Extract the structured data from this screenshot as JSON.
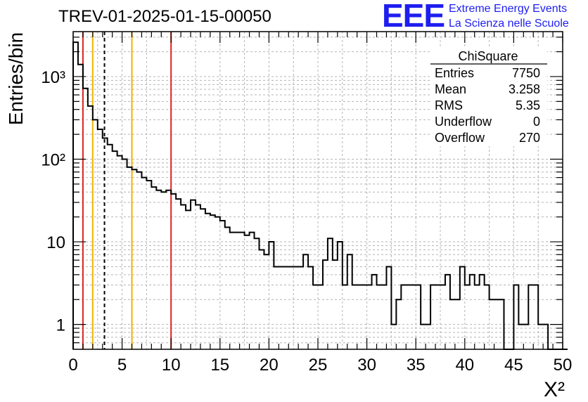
{
  "header": {
    "title": "TREV-01-2025-01-15-00050",
    "brand_logo": "EEE",
    "brand_line1": "Extreme Energy Events",
    "brand_line2": "La Scienza nelle Scuole"
  },
  "stats": {
    "name": "ChiSquare",
    "rows": [
      {
        "label": "Entries",
        "value": "7750"
      },
      {
        "label": "Mean",
        "value": "3.258"
      },
      {
        "label": "RMS",
        "value": "5.35"
      },
      {
        "label": "Underflow",
        "value": "0"
      },
      {
        "label": "Overflow",
        "value": "270"
      }
    ]
  },
  "chart_data": {
    "type": "histogram",
    "xlabel": "X²",
    "ylabel": "Entries/bin",
    "xlim": [
      0,
      50
    ],
    "ylim": [
      0.5,
      3500
    ],
    "yscale": "log",
    "grid": true,
    "bin_width": 0.5,
    "x_ticks": [
      "0",
      "5",
      "10",
      "15",
      "20",
      "25",
      "30",
      "35",
      "40",
      "45",
      "50"
    ],
    "y_ticks": [
      {
        "value": 1,
        "label": "1"
      },
      {
        "value": 10,
        "label": "10"
      },
      {
        "value": 100,
        "label": "10²"
      },
      {
        "value": 1000,
        "label": "10³"
      }
    ],
    "values": [
      2600,
      1400,
      720,
      440,
      300,
      230,
      180,
      150,
      125,
      110,
      100,
      80,
      75,
      70,
      60,
      55,
      46,
      42,
      40,
      42,
      38,
      33,
      28,
      24,
      32,
      28,
      25,
      22,
      21,
      20,
      18,
      15,
      13,
      13,
      13,
      12,
      13,
      11,
      8,
      7,
      10,
      5,
      5,
      5,
      5,
      5,
      5,
      7,
      5,
      3,
      3,
      6,
      11,
      6,
      10,
      3,
      7,
      3,
      3,
      3,
      3,
      4,
      3,
      3,
      5,
      1,
      2,
      3,
      3,
      3,
      3,
      1,
      1,
      3,
      3,
      3,
      4,
      2,
      2,
      5,
      3,
      4,
      3,
      4,
      3,
      2,
      2,
      2,
      0,
      0,
      3,
      1,
      1,
      3,
      3,
      1,
      1,
      0,
      0,
      0,
      0
    ],
    "vertical_lines": [
      {
        "x": 1.0,
        "color": "#e0231e",
        "style": "solid"
      },
      {
        "x": 2.0,
        "color": "#f0b400",
        "style": "solid"
      },
      {
        "x": 3.2,
        "color": "#000000",
        "style": "dashed"
      },
      {
        "x": 6.0,
        "color": "#f0b400",
        "style": "solid"
      },
      {
        "x": 10.0,
        "color": "#e0231e",
        "style": "solid"
      }
    ]
  }
}
